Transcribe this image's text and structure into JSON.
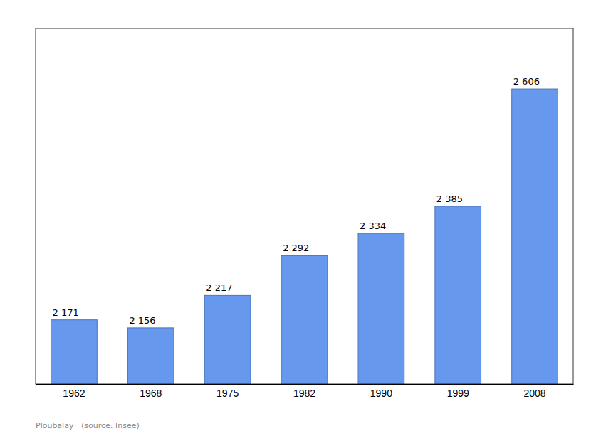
{
  "chart_data": {
    "type": "bar",
    "categories": [
      "1962",
      "1968",
      "1975",
      "1982",
      "1990",
      "1999",
      "2008"
    ],
    "values": [
      2171,
      2156,
      2217,
      2292,
      2334,
      2385,
      2606
    ],
    "value_labels": [
      "2 171",
      "2 156",
      "2 217",
      "2 292",
      "2 334",
      "2 385",
      "2 606"
    ],
    "data_labels": true,
    "color": "#6699EE",
    "ylim": [
      2050,
      2720
    ],
    "tick_labels": "x",
    "annotations": [
      "Ploubalay   (source: Insee)"
    ]
  }
}
